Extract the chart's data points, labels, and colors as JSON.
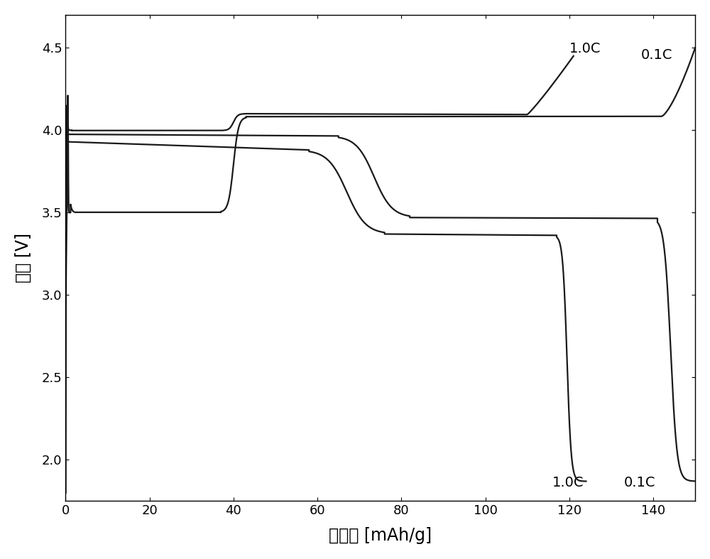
{
  "xlabel": "比容量 [mAh/g]",
  "ylabel": "电压 [V]",
  "xlim": [
    0,
    150
  ],
  "ylim": [
    1.75,
    4.7
  ],
  "xticks": [
    0,
    20,
    40,
    60,
    80,
    100,
    120,
    140
  ],
  "yticks": [
    2.0,
    2.5,
    3.0,
    3.5,
    4.0,
    4.5
  ],
  "label_01C_charge": "0.1C",
  "label_10C_charge": "1.0C",
  "label_01C_discharge": "0.1C",
  "label_10C_discharge": "1.0C",
  "line_color": "#1a1a1a",
  "bg_color": "#ffffff",
  "fontsize_label": 17,
  "fontsize_annot": 14,
  "fontsize_tick": 13
}
